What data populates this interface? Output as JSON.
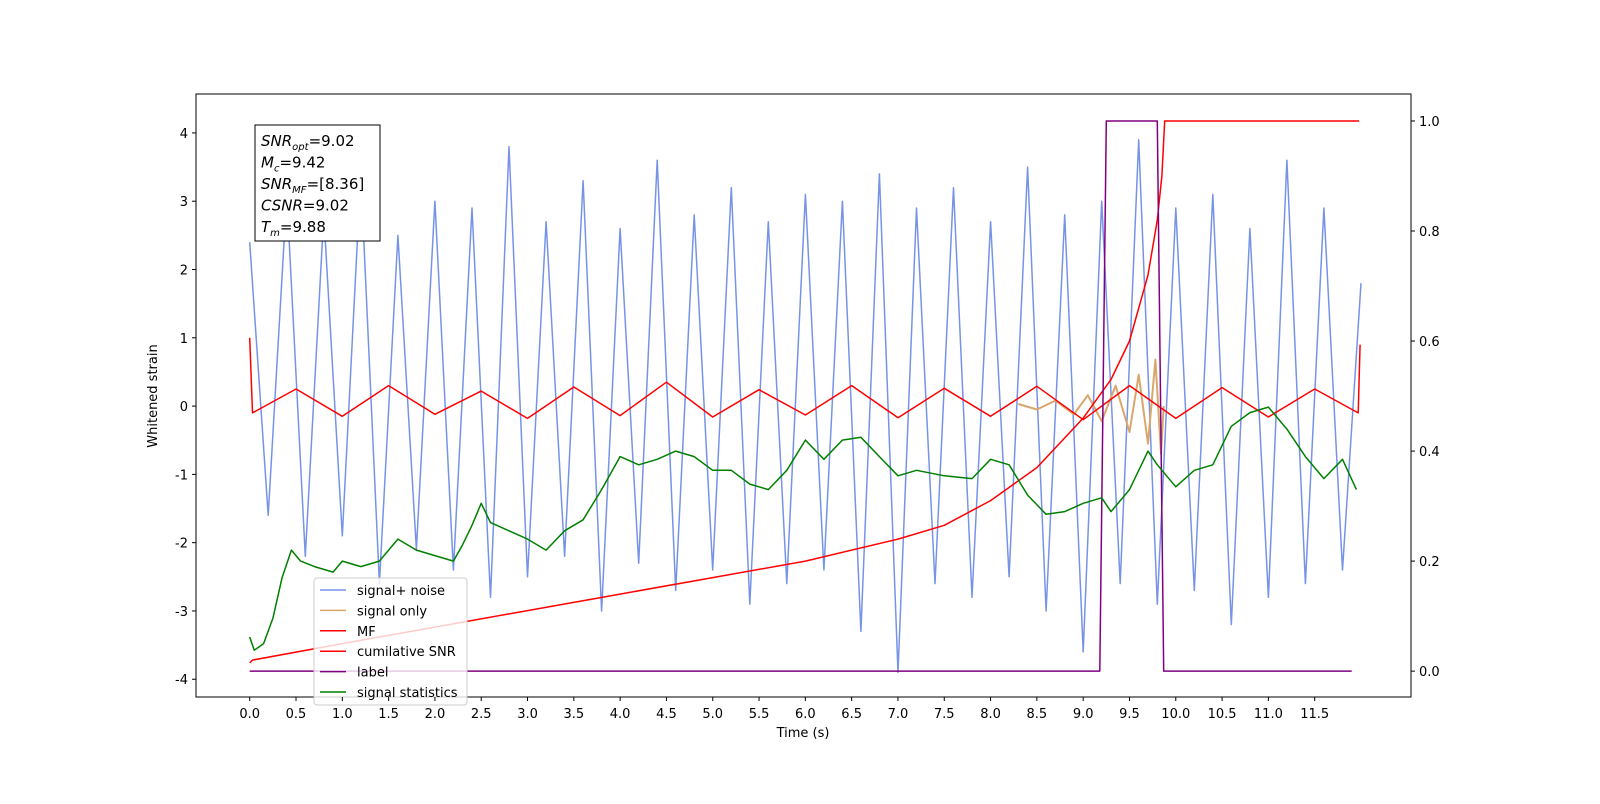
{
  "chart_data": {
    "type": "line",
    "xlabel": "Time (s)",
    "ylabel": "Whitened strain",
    "xlim": [
      -0.58,
      12.54
    ],
    "ylim": [
      -4.26,
      4.57
    ],
    "y2lim": [
      -0.047,
      1.049
    ],
    "xticks": [
      {
        "value": 0,
        "label": "0.0"
      },
      0.5,
      {
        "value": 1,
        "label": "1.0"
      },
      1.5,
      {
        "value": 2,
        "label": "2.0"
      },
      2.5,
      {
        "value": 3,
        "label": "3.0"
      },
      3.5,
      {
        "value": 4,
        "label": "4.0"
      },
      4.5,
      {
        "value": 5,
        "label": "5.0"
      },
      5.5,
      {
        "value": 6,
        "label": "6.0"
      },
      6.5,
      {
        "value": 7,
        "label": "7.0"
      },
      7.5,
      {
        "value": 8,
        "label": "8.0"
      },
      8.5,
      {
        "value": 9,
        "label": "9.0"
      },
      9.5,
      {
        "value": 10,
        "label": "10.0"
      },
      10.5,
      {
        "value": 11,
        "label": "11.0"
      },
      11.5
    ],
    "yticks": [
      -4,
      -3,
      -2,
      -1,
      0,
      1,
      2,
      3,
      4
    ],
    "y2ticks": [
      {
        "value": 0,
        "label": "0.0"
      },
      0.2,
      0.4,
      0.6,
      0.8,
      {
        "value": 1,
        "label": "1.0"
      }
    ],
    "grid": false,
    "legend": "lower left",
    "annotation": [
      {
        "symbol": "SNR",
        "sub": "opt",
        "text": "=9.02"
      },
      {
        "symbol": "M",
        "sub": "c",
        "text": "=9.42"
      },
      {
        "symbol": "SNR",
        "sub": "MF",
        "text": "=[8.36]"
      },
      {
        "symbol": "CSNR",
        "text": "=9.02"
      },
      {
        "symbol": "T",
        "sub": "m",
        "text": "=9.88"
      }
    ],
    "series": [
      {
        "name": "signal+ noise",
        "color": "#7793e8",
        "x": [
          0,
          0.2,
          0.4,
          0.6,
          0.8,
          1,
          1.2,
          1.4,
          1.6,
          1.8,
          2,
          2.2,
          2.4,
          2.6,
          2.8,
          3,
          3.2,
          3.4,
          3.6,
          3.8,
          4,
          4.2,
          4.4,
          4.6,
          4.8,
          5,
          5.2,
          5.4,
          5.6,
          5.8,
          6,
          6.2,
          6.4,
          6.6,
          6.8,
          7,
          7.2,
          7.4,
          7.6,
          7.8,
          8,
          8.2,
          8.4,
          8.6,
          8.8,
          9,
          9.2,
          9.4,
          9.6,
          9.8,
          10,
          10.2,
          10.4,
          10.6,
          10.8,
          11,
          11.2,
          11.4,
          11.6,
          11.8,
          12
        ],
        "values": [
          2.4,
          -1.6,
          3.1,
          -2.2,
          2.8,
          -1.9,
          3.4,
          -2.6,
          2.5,
          -2.1,
          3.0,
          -2.4,
          2.9,
          -2.8,
          3.8,
          -2.5,
          2.7,
          -2.2,
          3.3,
          -3.0,
          2.6,
          -2.3,
          3.6,
          -2.7,
          2.8,
          -2.4,
          3.2,
          -2.9,
          2.7,
          -2.6,
          3.1,
          -2.4,
          3.0,
          -3.3,
          3.4,
          -3.9,
          2.9,
          -2.6,
          3.2,
          -2.8,
          2.7,
          -2.5,
          3.5,
          -3.0,
          2.8,
          -3.6,
          3.0,
          -2.6,
          3.9,
          -2.9,
          2.9,
          -2.7,
          3.1,
          -3.2,
          2.6,
          -2.8,
          3.6,
          -2.6,
          2.9,
          -2.4,
          1.8
        ]
      },
      {
        "name": "signal only",
        "color": "#d9a66c",
        "x": [
          8.3,
          8.5,
          8.7,
          8.9,
          9.05,
          9.2,
          9.35,
          9.5,
          9.6,
          9.7,
          9.78,
          9.84,
          9.87
        ],
        "values": [
          0.03,
          -0.05,
          0.08,
          -0.12,
          0.16,
          -0.22,
          0.3,
          -0.38,
          0.46,
          -0.55,
          0.68,
          -0.7,
          0.0
        ]
      },
      {
        "name": "MF",
        "color": "#ff0000",
        "x": [
          0,
          0.03,
          0.5,
          1,
          1.5,
          2,
          2.5,
          3,
          3.5,
          4,
          4.5,
          5,
          5.5,
          6,
          6.5,
          7,
          7.5,
          8,
          8.5,
          9,
          9.5,
          10,
          10.5,
          11,
          11.5,
          11.97,
          11.99
        ],
        "values": [
          1.0,
          -0.1,
          0.25,
          -0.15,
          0.3,
          -0.12,
          0.22,
          -0.18,
          0.28,
          -0.14,
          0.35,
          -0.16,
          0.24,
          -0.13,
          0.3,
          -0.17,
          0.26,
          -0.15,
          0.29,
          -0.2,
          0.3,
          -0.18,
          0.27,
          -0.16,
          0.25,
          -0.1,
          0.9
        ]
      },
      {
        "name": "cumilative SNR",
        "color": "#ff0000",
        "axis": "y2",
        "x": [
          0,
          0.03,
          1,
          2,
          3,
          4,
          5,
          6,
          7,
          7.5,
          8,
          8.5,
          9,
          9.3,
          9.5,
          9.7,
          9.8,
          9.85,
          9.88,
          11.98
        ],
        "values": [
          0.015,
          0.02,
          0.05,
          0.08,
          0.11,
          0.14,
          0.17,
          0.2,
          0.24,
          0.265,
          0.31,
          0.37,
          0.46,
          0.53,
          0.6,
          0.72,
          0.82,
          0.9,
          1.0,
          1.0
        ]
      },
      {
        "name": "label",
        "color": "#800080",
        "axis": "y2",
        "x": [
          0,
          9.18,
          9.25,
          9.8,
          9.87,
          11.9
        ],
        "values": [
          0,
          0,
          1,
          1,
          0,
          0
        ]
      },
      {
        "name": "signal statistics",
        "color": "#008000",
        "axis": "y2",
        "x": [
          0,
          0.05,
          0.15,
          0.25,
          0.35,
          0.45,
          0.55,
          0.7,
          0.9,
          1.0,
          1.2,
          1.4,
          1.6,
          1.8,
          2.0,
          2.2,
          2.3,
          2.4,
          2.5,
          2.6,
          2.8,
          3.0,
          3.2,
          3.4,
          3.6,
          3.8,
          4.0,
          4.2,
          4.4,
          4.6,
          4.8,
          5.0,
          5.2,
          5.4,
          5.6,
          5.8,
          6.0,
          6.2,
          6.4,
          6.6,
          6.8,
          7.0,
          7.2,
          7.5,
          7.8,
          8.0,
          8.2,
          8.4,
          8.6,
          8.8,
          9.0,
          9.2,
          9.3,
          9.5,
          9.7,
          9.8,
          10.0,
          10.2,
          10.4,
          10.6,
          10.8,
          11.0,
          11.2,
          11.4,
          11.6,
          11.8,
          11.95
        ],
        "values": [
          0.062,
          0.038,
          0.05,
          0.096,
          0.17,
          0.22,
          0.2,
          0.19,
          0.18,
          0.2,
          0.19,
          0.2,
          0.24,
          0.22,
          0.21,
          0.2,
          0.23,
          0.265,
          0.305,
          0.27,
          0.255,
          0.24,
          0.22,
          0.255,
          0.275,
          0.33,
          0.39,
          0.375,
          0.385,
          0.4,
          0.39,
          0.365,
          0.365,
          0.34,
          0.33,
          0.365,
          0.42,
          0.385,
          0.42,
          0.425,
          0.39,
          0.355,
          0.365,
          0.355,
          0.35,
          0.385,
          0.375,
          0.32,
          0.285,
          0.29,
          0.305,
          0.315,
          0.29,
          0.33,
          0.4,
          0.375,
          0.335,
          0.365,
          0.375,
          0.445,
          0.47,
          0.48,
          0.44,
          0.39,
          0.35,
          0.385,
          0.33
        ]
      }
    ]
  }
}
